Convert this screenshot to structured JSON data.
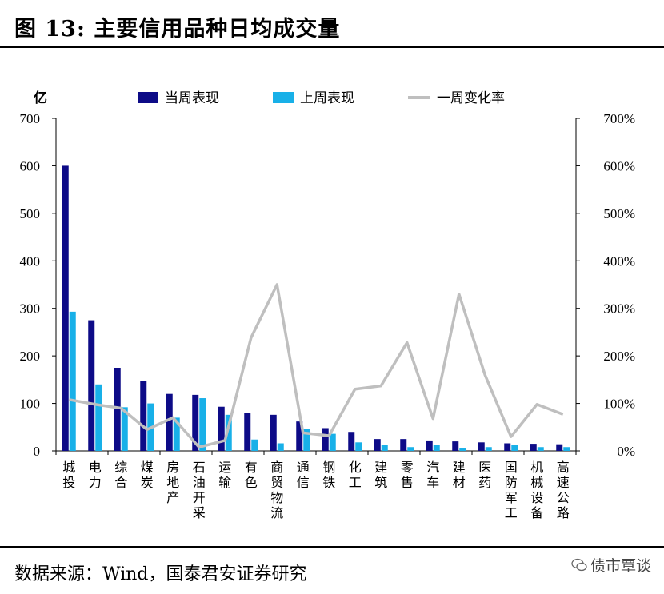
{
  "header": {
    "title": "图 13:  主要信用品种日均成交量"
  },
  "footer": {
    "source": "数据来源：Wind，国泰君安证券研究",
    "watermark": "债市覃谈"
  },
  "colors": {
    "current": "#0d0b87",
    "previous": "#18b0e8",
    "change": "#bfbfbf",
    "axis": "#000000"
  },
  "chart_data": {
    "type": "bar",
    "title": "主要信用品种日均成交量",
    "y_unit_label": "亿",
    "ylim": [
      0,
      700
    ],
    "yticks": [
      0,
      100,
      200,
      300,
      400,
      500,
      600,
      700
    ],
    "y2lim": [
      0,
      700
    ],
    "y2ticks": [
      "0%",
      "100%",
      "200%",
      "300%",
      "400%",
      "500%",
      "600%",
      "700%"
    ],
    "categories": [
      "城投",
      "电力",
      "综合",
      "煤炭",
      "房地产",
      "石油开采",
      "运输",
      "有色",
      "商贸物流",
      "通信",
      "钢铁",
      "化工",
      "建筑",
      "零售",
      "汽车",
      "建材",
      "医药",
      "国防军工",
      "机械设备",
      "高速公路"
    ],
    "series": [
      {
        "name": "当周表现",
        "type": "bar",
        "axis": "left",
        "values": [
          600,
          275,
          175,
          147,
          120,
          118,
          93,
          80,
          76,
          62,
          48,
          40,
          25,
          25,
          22,
          20,
          18,
          16,
          15,
          14
        ]
      },
      {
        "name": "上周表现",
        "type": "bar",
        "axis": "left",
        "values": [
          293,
          140,
          92,
          100,
          70,
          111,
          76,
          24,
          16,
          46,
          36,
          18,
          12,
          8,
          13,
          5,
          8,
          12,
          8,
          8
        ]
      },
      {
        "name": "一周变化率",
        "type": "line",
        "axis": "right",
        "unit": "%",
        "values": [
          108,
          98,
          90,
          45,
          70,
          8,
          22,
          238,
          350,
          38,
          32,
          130,
          137,
          228,
          68,
          330,
          160,
          30,
          98,
          77
        ]
      }
    ],
    "legend_position": "top"
  }
}
